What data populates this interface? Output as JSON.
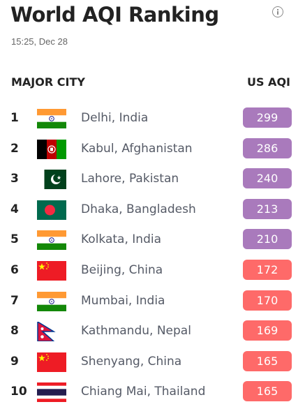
{
  "header": {
    "title": "World AQI Ranking",
    "timestamp": "15:25, Dec 28",
    "info_icon": "info-icon"
  },
  "columns": {
    "city": "MAJOR CITY",
    "aqi": "US AQI"
  },
  "colors": {
    "very_unhealthy": "#a97abc",
    "unhealthy": "#fe6a69"
  },
  "rows": [
    {
      "rank": "1",
      "flag": "india",
      "city": "Delhi, India",
      "aqi": "299",
      "level": "very_unhealthy"
    },
    {
      "rank": "2",
      "flag": "afghanistan",
      "city": "Kabul, Afghanistan",
      "aqi": "286",
      "level": "very_unhealthy"
    },
    {
      "rank": "3",
      "flag": "pakistan",
      "city": "Lahore, Pakistan",
      "aqi": "240",
      "level": "very_unhealthy"
    },
    {
      "rank": "4",
      "flag": "bangladesh",
      "city": "Dhaka, Bangladesh",
      "aqi": "213",
      "level": "very_unhealthy"
    },
    {
      "rank": "5",
      "flag": "india",
      "city": "Kolkata, India",
      "aqi": "210",
      "level": "very_unhealthy"
    },
    {
      "rank": "6",
      "flag": "china",
      "city": "Beijing, China",
      "aqi": "172",
      "level": "unhealthy"
    },
    {
      "rank": "7",
      "flag": "india",
      "city": "Mumbai, India",
      "aqi": "170",
      "level": "unhealthy"
    },
    {
      "rank": "8",
      "flag": "nepal",
      "city": "Kathmandu, Nepal",
      "aqi": "169",
      "level": "unhealthy"
    },
    {
      "rank": "9",
      "flag": "china",
      "city": "Shenyang, China",
      "aqi": "165",
      "level": "unhealthy"
    },
    {
      "rank": "10",
      "flag": "thailand",
      "city": "Chiang Mai, Thailand",
      "aqi": "165",
      "level": "unhealthy"
    }
  ]
}
